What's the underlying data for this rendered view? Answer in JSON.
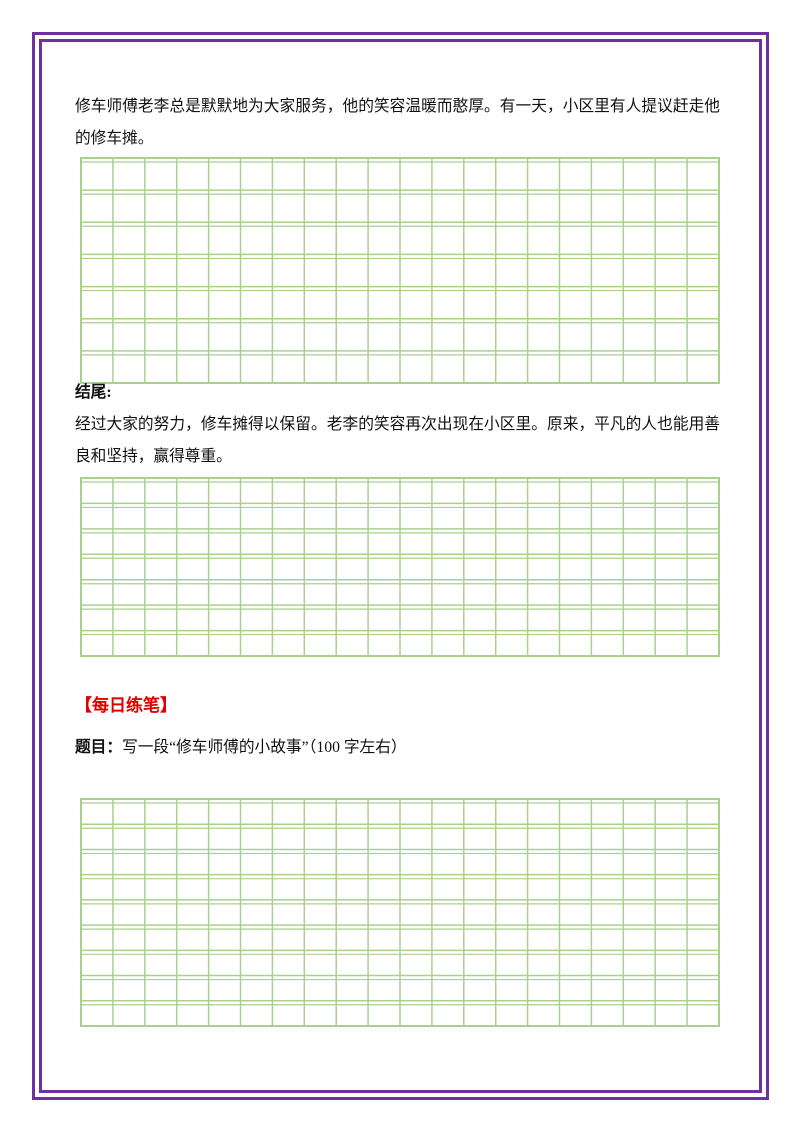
{
  "paragraph_1": "修车师傅老李总是默默地为大家服务，他的笑容温暖而憨厚。有一天，小区里有人提议赶走他的修车摊。",
  "ending_label": "结尾:",
  "paragraph_2": "经过大家的努力，修车摊得以保留。老李的笑容再次出现在小区里。原来，平凡的人也能用善良和坚持，赢得尊重。",
  "section_title": "【每日练笔】",
  "prompt_label": "题目：",
  "prompt_text": "写一段“修车师傅的小故事”（100 字左右）"
}
